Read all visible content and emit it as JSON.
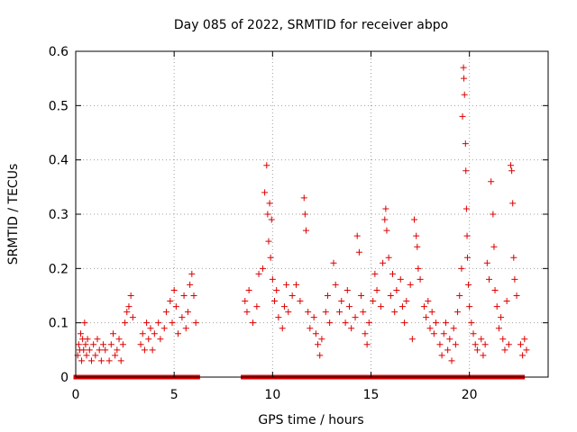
{
  "chart_data": {
    "type": "scatter",
    "title": "Day 085 of 2022, SRMTID for receiver abpo",
    "xlabel": "GPS time / hours",
    "ylabel": "SRMTID / TECUs",
    "xlim": [
      0,
      24
    ],
    "ylim": [
      0,
      0.6
    ],
    "grid": true,
    "x_ticks": [
      0,
      5,
      10,
      15,
      20
    ],
    "y_ticks": [
      0,
      0.1,
      0.2,
      0.3,
      0.4,
      0.5,
      0.6
    ],
    "x_tick_labels": [
      "0",
      "5",
      "10",
      "15",
      "20"
    ],
    "y_tick_labels": [
      "0",
      "0.1",
      "0.2",
      "0.3",
      "0.4",
      "0.5",
      "0.6"
    ],
    "marker_color": "#dd0000",
    "series": [
      {
        "name": "SRMTID",
        "marker": "plus",
        "points": [
          [
            0.1,
            0.04
          ],
          [
            0.15,
            0.06
          ],
          [
            0.2,
            0.05
          ],
          [
            0.25,
            0.08
          ],
          [
            0.3,
            0.03
          ],
          [
            0.35,
            0.07
          ],
          [
            0.4,
            0.05
          ],
          [
            0.45,
            0.1
          ],
          [
            0.5,
            0.06
          ],
          [
            0.55,
            0.04
          ],
          [
            0.6,
            0.07
          ],
          [
            0.7,
            0.05
          ],
          [
            0.8,
            0.03
          ],
          [
            0.9,
            0.06
          ],
          [
            1.0,
            0.04
          ],
          [
            1.1,
            0.07
          ],
          [
            1.2,
            0.05
          ],
          [
            1.3,
            0.03
          ],
          [
            1.4,
            0.06
          ],
          [
            1.5,
            0.05
          ],
          [
            1.7,
            0.03
          ],
          [
            1.8,
            0.06
          ],
          [
            1.9,
            0.08
          ],
          [
            2.0,
            0.04
          ],
          [
            2.1,
            0.05
          ],
          [
            2.2,
            0.07
          ],
          [
            2.3,
            0.03
          ],
          [
            2.4,
            0.06
          ],
          [
            2.5,
            0.1
          ],
          [
            2.6,
            0.12
          ],
          [
            2.7,
            0.13
          ],
          [
            2.8,
            0.15
          ],
          [
            2.9,
            0.11
          ],
          [
            3.3,
            0.06
          ],
          [
            3.4,
            0.08
          ],
          [
            3.5,
            0.05
          ],
          [
            3.6,
            0.1
          ],
          [
            3.7,
            0.07
          ],
          [
            3.8,
            0.09
          ],
          [
            3.9,
            0.05
          ],
          [
            4.0,
            0.08
          ],
          [
            4.2,
            0.1
          ],
          [
            4.3,
            0.07
          ],
          [
            4.5,
            0.09
          ],
          [
            4.6,
            0.12
          ],
          [
            4.8,
            0.14
          ],
          [
            4.9,
            0.1
          ],
          [
            5.0,
            0.16
          ],
          [
            5.1,
            0.13
          ],
          [
            5.2,
            0.08
          ],
          [
            5.4,
            0.11
          ],
          [
            5.5,
            0.15
          ],
          [
            5.6,
            0.09
          ],
          [
            5.7,
            0.12
          ],
          [
            5.8,
            0.17
          ],
          [
            5.9,
            0.19
          ],
          [
            6.0,
            0.15
          ],
          [
            6.1,
            0.1
          ],
          [
            8.6,
            0.14
          ],
          [
            8.7,
            0.12
          ],
          [
            8.8,
            0.16
          ],
          [
            9.0,
            0.1
          ],
          [
            9.2,
            0.13
          ],
          [
            9.3,
            0.19
          ],
          [
            9.5,
            0.2
          ],
          [
            9.6,
            0.34
          ],
          [
            9.7,
            0.39
          ],
          [
            9.75,
            0.3
          ],
          [
            9.8,
            0.25
          ],
          [
            9.85,
            0.32
          ],
          [
            9.9,
            0.22
          ],
          [
            9.95,
            0.29
          ],
          [
            10.0,
            0.18
          ],
          [
            10.1,
            0.14
          ],
          [
            10.2,
            0.16
          ],
          [
            10.3,
            0.11
          ],
          [
            10.5,
            0.09
          ],
          [
            10.6,
            0.13
          ],
          [
            10.7,
            0.17
          ],
          [
            10.8,
            0.12
          ],
          [
            11.0,
            0.15
          ],
          [
            11.2,
            0.17
          ],
          [
            11.4,
            0.14
          ],
          [
            11.6,
            0.33
          ],
          [
            11.65,
            0.3
          ],
          [
            11.7,
            0.27
          ],
          [
            11.8,
            0.12
          ],
          [
            11.9,
            0.09
          ],
          [
            12.1,
            0.11
          ],
          [
            12.2,
            0.08
          ],
          [
            12.3,
            0.06
          ],
          [
            12.4,
            0.04
          ],
          [
            12.5,
            0.07
          ],
          [
            12.7,
            0.12
          ],
          [
            12.8,
            0.15
          ],
          [
            12.9,
            0.1
          ],
          [
            13.1,
            0.21
          ],
          [
            13.2,
            0.17
          ],
          [
            13.4,
            0.12
          ],
          [
            13.5,
            0.14
          ],
          [
            13.7,
            0.1
          ],
          [
            13.8,
            0.16
          ],
          [
            13.9,
            0.13
          ],
          [
            14.0,
            0.09
          ],
          [
            14.2,
            0.11
          ],
          [
            14.3,
            0.26
          ],
          [
            14.4,
            0.23
          ],
          [
            14.5,
            0.15
          ],
          [
            14.6,
            0.12
          ],
          [
            14.7,
            0.08
          ],
          [
            14.8,
            0.06
          ],
          [
            14.9,
            0.1
          ],
          [
            15.1,
            0.14
          ],
          [
            15.2,
            0.19
          ],
          [
            15.3,
            0.16
          ],
          [
            15.5,
            0.13
          ],
          [
            15.6,
            0.21
          ],
          [
            15.7,
            0.29
          ],
          [
            15.75,
            0.31
          ],
          [
            15.8,
            0.27
          ],
          [
            15.9,
            0.22
          ],
          [
            16.0,
            0.15
          ],
          [
            16.1,
            0.19
          ],
          [
            16.2,
            0.12
          ],
          [
            16.3,
            0.16
          ],
          [
            16.5,
            0.18
          ],
          [
            16.6,
            0.13
          ],
          [
            16.7,
            0.1
          ],
          [
            16.8,
            0.14
          ],
          [
            17.0,
            0.17
          ],
          [
            17.1,
            0.07
          ],
          [
            17.2,
            0.29
          ],
          [
            17.3,
            0.26
          ],
          [
            17.35,
            0.24
          ],
          [
            17.4,
            0.2
          ],
          [
            17.5,
            0.18
          ],
          [
            17.7,
            0.13
          ],
          [
            17.8,
            0.11
          ],
          [
            17.9,
            0.14
          ],
          [
            18.0,
            0.09
          ],
          [
            18.1,
            0.12
          ],
          [
            18.2,
            0.08
          ],
          [
            18.3,
            0.1
          ],
          [
            18.5,
            0.06
          ],
          [
            18.6,
            0.04
          ],
          [
            18.7,
            0.08
          ],
          [
            18.8,
            0.1
          ],
          [
            18.9,
            0.05
          ],
          [
            19.0,
            0.07
          ],
          [
            19.1,
            0.03
          ],
          [
            19.2,
            0.09
          ],
          [
            19.3,
            0.06
          ],
          [
            19.4,
            0.12
          ],
          [
            19.5,
            0.15
          ],
          [
            19.6,
            0.2
          ],
          [
            19.65,
            0.48
          ],
          [
            19.7,
            0.57
          ],
          [
            19.72,
            0.55
          ],
          [
            19.75,
            0.52
          ],
          [
            19.8,
            0.43
          ],
          [
            19.82,
            0.38
          ],
          [
            19.85,
            0.31
          ],
          [
            19.88,
            0.26
          ],
          [
            19.9,
            0.22
          ],
          [
            19.95,
            0.17
          ],
          [
            20.0,
            0.13
          ],
          [
            20.1,
            0.1
          ],
          [
            20.2,
            0.08
          ],
          [
            20.3,
            0.06
          ],
          [
            20.4,
            0.05
          ],
          [
            20.6,
            0.07
          ],
          [
            20.7,
            0.04
          ],
          [
            20.8,
            0.06
          ],
          [
            20.9,
            0.21
          ],
          [
            21.0,
            0.18
          ],
          [
            21.1,
            0.36
          ],
          [
            21.2,
            0.3
          ],
          [
            21.25,
            0.24
          ],
          [
            21.3,
            0.16
          ],
          [
            21.4,
            0.13
          ],
          [
            21.5,
            0.09
          ],
          [
            21.6,
            0.11
          ],
          [
            21.7,
            0.07
          ],
          [
            21.8,
            0.05
          ],
          [
            21.9,
            0.14
          ],
          [
            22.0,
            0.06
          ],
          [
            22.1,
            0.39
          ],
          [
            22.15,
            0.38
          ],
          [
            22.2,
            0.32
          ],
          [
            22.25,
            0.22
          ],
          [
            22.3,
            0.18
          ],
          [
            22.4,
            0.15
          ],
          [
            22.6,
            0.06
          ],
          [
            22.7,
            0.04
          ],
          [
            22.8,
            0.07
          ],
          [
            22.9,
            0.05
          ]
        ]
      },
      {
        "name": "zero values",
        "marker": "square",
        "x_ranges": [
          [
            0,
            6.3
          ],
          [
            8.5,
            22.8
          ]
        ],
        "x_step": 0.2,
        "y": 0
      }
    ]
  }
}
